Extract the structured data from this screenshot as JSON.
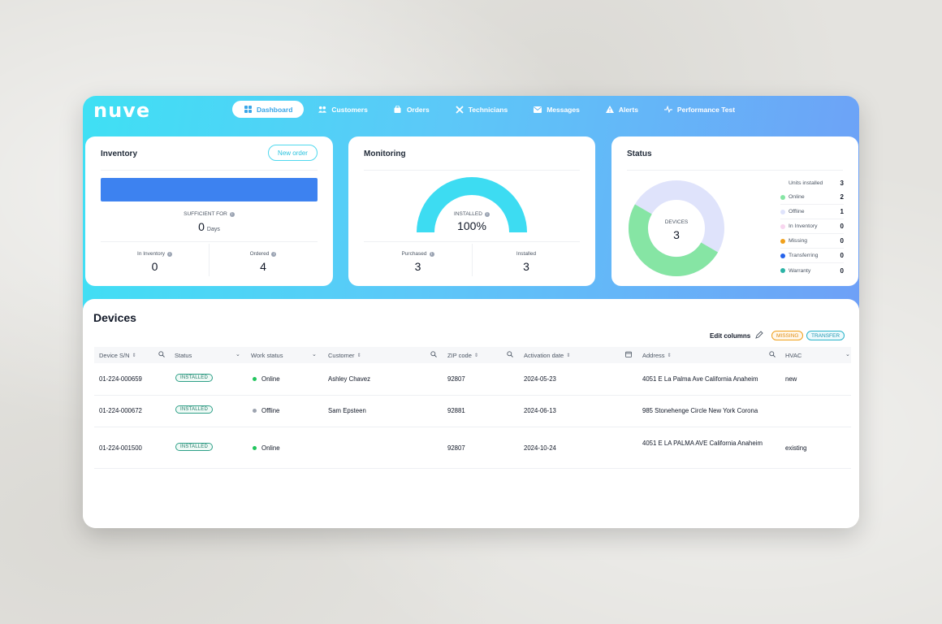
{
  "app": {
    "logo": "nuve"
  },
  "nav": [
    {
      "label": "Dashboard",
      "icon": "grid-icon",
      "active": true
    },
    {
      "label": "Customers",
      "icon": "users-icon"
    },
    {
      "label": "Orders",
      "icon": "bag-icon"
    },
    {
      "label": "Technicians",
      "icon": "tools-icon"
    },
    {
      "label": "Messages",
      "icon": "mail-icon"
    },
    {
      "label": "Alerts",
      "icon": "warning-icon"
    },
    {
      "label": "Performance Test",
      "icon": "pulse-icon"
    }
  ],
  "inventory": {
    "title": "Inventory",
    "new_order_label": "New order",
    "sufficient_label": "SUFFICIENT FOR",
    "sufficient_value": "0",
    "sufficient_unit": "Days",
    "in_inventory_label": "In Inventory",
    "in_inventory_value": "0",
    "ordered_label": "Ordered",
    "ordered_value": "4"
  },
  "monitoring": {
    "title": "Monitoring",
    "installed_label": "INSTALLED",
    "installed_percent": "100%",
    "gauge_fraction": 1.0,
    "purchased_label": "Purchased",
    "purchased_value": "3",
    "installed_count_label": "Installed",
    "installed_count_value": "3"
  },
  "status": {
    "title": "Status",
    "devices_label": "DEVICES",
    "devices_value": "3",
    "units_installed_label": "Units installed",
    "units_installed_value": "3",
    "legend": [
      {
        "label": "Online",
        "value": "2",
        "color": "#86e5a4"
      },
      {
        "label": "Offline",
        "value": "1",
        "color": "#dfe3fb"
      },
      {
        "label": "In Inventory",
        "value": "0",
        "color": "#f8d6ef"
      },
      {
        "label": "Missing",
        "value": "0",
        "color": "#f0a01c"
      },
      {
        "label": "Transferring",
        "value": "0",
        "color": "#2563eb"
      },
      {
        "label": "Warranty",
        "value": "0",
        "color": "#2bb3a6"
      }
    ]
  },
  "devices": {
    "title": "Devices",
    "edit_columns_label": "Edit columns",
    "tags": [
      {
        "label": "MISSING",
        "color": "#f0a01c"
      },
      {
        "label": "TRANSFER",
        "color": "#2bb3c9"
      }
    ],
    "columns": [
      "Device S/N",
      "Status",
      "Work status",
      "Customer",
      "ZIP code",
      "Activation date",
      "Address",
      "HVAC"
    ],
    "rows": [
      {
        "sn": "01-224-000659",
        "status": "INSTALLED",
        "work": "Online",
        "work_color": "#22c55e",
        "customer": "Ashley Chavez",
        "zip": "92807",
        "date": "2024-05-23",
        "address": "4051 E La Palma Ave California Anaheim",
        "hvac": "new"
      },
      {
        "sn": "01-224-000672",
        "status": "INSTALLED",
        "work": "Offline",
        "work_color": "#9ca3af",
        "customer": "Sam Epsteen",
        "zip": "92881",
        "date": "2024-06-13",
        "address": "985 Stonehenge Circle New York Corona",
        "hvac": ""
      },
      {
        "sn": "01-224-001500",
        "status": "INSTALLED",
        "work": "Online",
        "work_color": "#22c55e",
        "customer": "",
        "zip": "92807",
        "date": "2024-10-24",
        "address": "4051 E LA PALMA AVE California Anaheim",
        "hvac": "existing"
      }
    ]
  }
}
